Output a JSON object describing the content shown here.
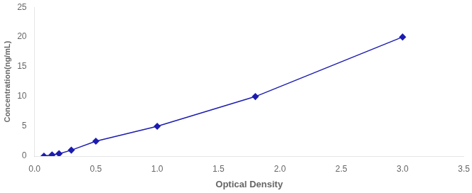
{
  "chart_data": {
    "type": "line",
    "x": [
      0.077,
      0.143,
      0.2,
      0.3,
      0.5,
      1.0,
      1.8,
      3.0
    ],
    "values": [
      0.0,
      0.2,
      0.4,
      1.0,
      2.5,
      5.0,
      10.0,
      20.0
    ],
    "color": "#1C1CB0",
    "marker": "diamond",
    "xlabel": "Optical Density",
    "ylabel": "Concentration(ng/mL)",
    "xlim": [
      0,
      3.5
    ],
    "ylim": [
      0,
      25
    ],
    "xticks": [
      {
        "value": 0,
        "label": "0.0"
      },
      0.5,
      {
        "value": 1.0,
        "label": "1.0"
      },
      1.5,
      {
        "value": 2.0,
        "label": "2.0"
      },
      2.5,
      {
        "value": 3.0,
        "label": "3.0"
      },
      3.5
    ],
    "yticks": [
      0,
      5,
      10,
      15,
      20,
      25
    ],
    "grid": false
  }
}
